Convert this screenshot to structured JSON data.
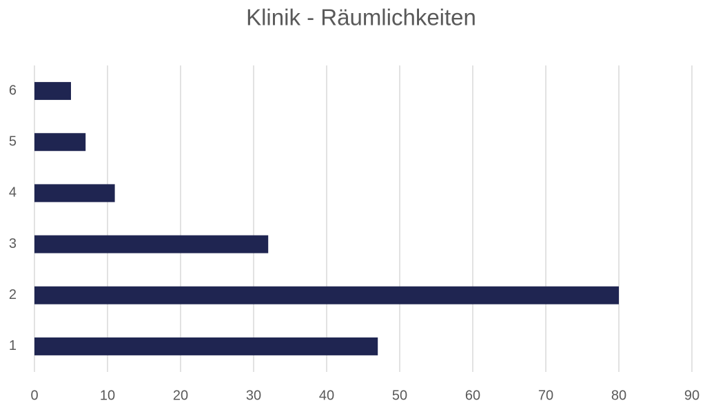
{
  "chart_data": {
    "type": "bar",
    "orientation": "horizontal",
    "title": "Klinik - Räumlichkeiten",
    "categories": [
      "1",
      "2",
      "3",
      "4",
      "5",
      "6"
    ],
    "values": [
      47,
      80,
      32,
      11,
      7,
      5
    ],
    "color": "#1f2551",
    "xlim": [
      0,
      90
    ],
    "xticks": [
      0,
      10,
      20,
      30,
      40,
      50,
      60,
      70,
      80,
      90
    ],
    "grid": true
  }
}
